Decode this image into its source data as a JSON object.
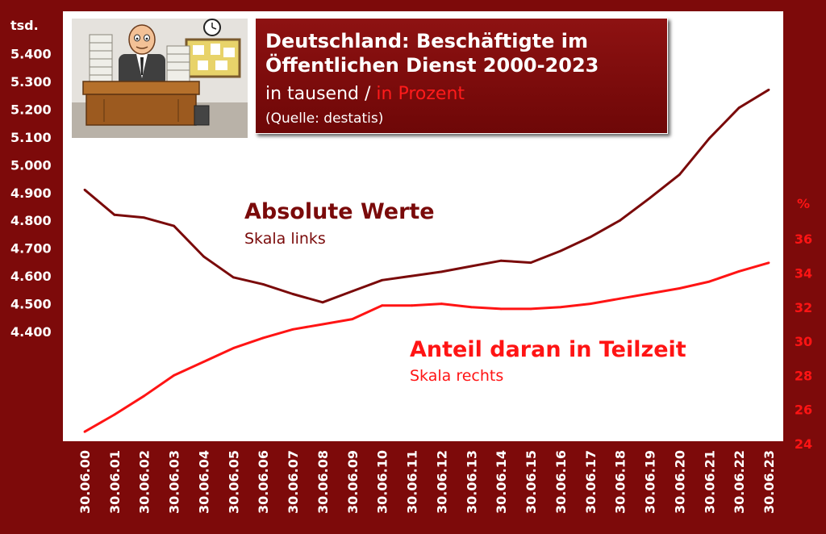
{
  "title": {
    "line1": "Deutschland: Beschäftigte im",
    "line2": "Öffentlichen Dienst 2000-2023",
    "subtitle_white": "in tausend / ",
    "subtitle_red": "in Prozent",
    "source": "(Quelle: destatis)"
  },
  "labels": {
    "absolute_title": "Absolute Werte",
    "absolute_scale": "Skala links",
    "share_title": "Anteil daran in Teilzeit",
    "share_scale": "Skala rechts",
    "left_unit": "tsd.",
    "right_unit": "%"
  },
  "colors": {
    "background": "#7d0a0a",
    "plot": "#ffffff",
    "absolute_line": "#7a0a0a",
    "share_line": "#ff1414"
  },
  "chart_data": {
    "type": "line",
    "categories": [
      "30.06.00",
      "30.06.01",
      "30.06.02",
      "30.06.03",
      "30.06.04",
      "30.06.05",
      "30.06.06",
      "30.06.07",
      "30.06.08",
      "30.06.09",
      "30.06.10",
      "30.06.11",
      "30.06.12",
      "30.06.13",
      "30.06.14",
      "30.06.15",
      "30.06.16",
      "30.06.17",
      "30.06.18",
      "30.06.19",
      "30.06.20",
      "30.06.21",
      "30.06.22",
      "30.06.23"
    ],
    "left_axis": {
      "unit": "tsd.",
      "ticks": [
        4400,
        4500,
        4600,
        4700,
        4800,
        4900,
        5000,
        5100,
        5200,
        5300,
        5400
      ],
      "tick_labels": [
        "4.400",
        "4.500",
        "4.600",
        "4.700",
        "4.800",
        "4.900",
        "5.000",
        "5.100",
        "5.200",
        "5.300",
        "5.400"
      ]
    },
    "right_axis": {
      "unit": "%",
      "ticks": [
        24,
        26,
        28,
        30,
        32,
        34,
        36
      ]
    },
    "series": [
      {
        "name": "Absolute Werte",
        "axis": "left",
        "values": [
          4910,
          4820,
          4810,
          4780,
          4670,
          4595,
          4570,
          4535,
          4505,
          4545,
          4585,
          4600,
          4615,
          4635,
          4655,
          4648,
          4690,
          4740,
          4800,
          4880,
          4965,
          5095,
          5205,
          5270
        ]
      },
      {
        "name": "Anteil daran in Teilzeit",
        "axis": "right",
        "values": [
          24.7,
          25.7,
          26.8,
          28.0,
          28.8,
          29.6,
          30.2,
          30.7,
          31.0,
          31.3,
          32.1,
          32.1,
          32.2,
          32.0,
          31.9,
          31.9,
          32.0,
          32.2,
          32.5,
          32.8,
          33.1,
          33.5,
          34.1,
          34.6
        ]
      }
    ],
    "grid": false
  }
}
